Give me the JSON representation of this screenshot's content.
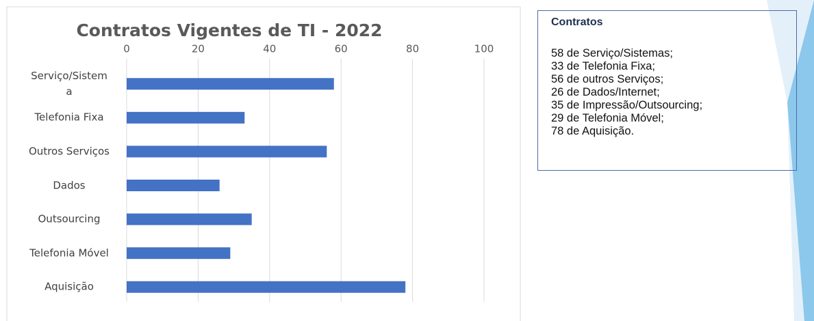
{
  "chart_data": {
    "type": "bar",
    "orientation": "horizontal",
    "title": "Contratos Vigentes de TI - 2022",
    "categories": [
      "Serviço/Sistema",
      "Telefonia Fixa",
      "Outros Serviços",
      "Dados",
      "Outsourcing",
      "Telefonia Móvel",
      "Aquisição"
    ],
    "values": [
      58,
      33,
      56,
      26,
      35,
      29,
      78
    ],
    "color": "#4472c4",
    "xlim": [
      0,
      100
    ],
    "xticks": [
      0,
      20,
      40,
      60,
      80,
      100
    ],
    "grid": true
  },
  "text_box": {
    "title": "Contratos",
    "lines": [
      "58 de Serviço/Sistemas;",
      "33 de Telefonia Fixa;",
      "56 de outros Serviços;",
      "26 de Dados/Internet;",
      "35 de Impressão/Outsourcing;",
      "29 de Telefonia Móvel;",
      "78 de Aquisição."
    ]
  }
}
